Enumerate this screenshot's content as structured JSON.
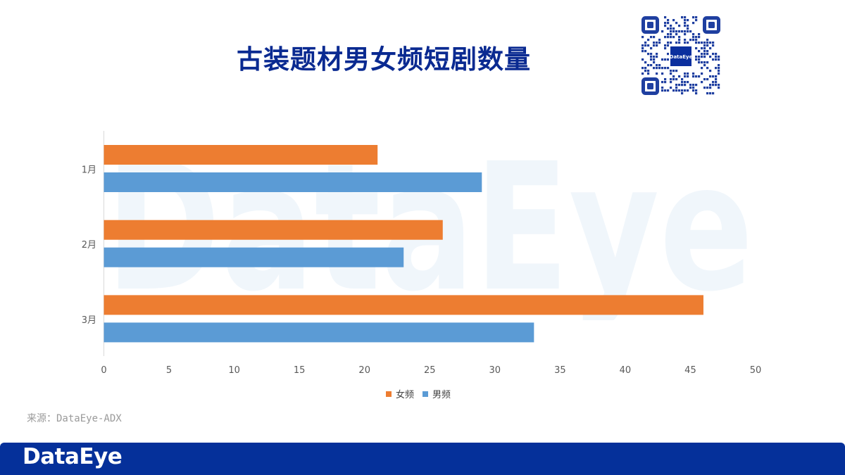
{
  "title": "古装题材男女频短剧数量",
  "source": "来源：DataEye-ADX",
  "brand": "DataEye",
  "qr_label": "DataEye",
  "colors": {
    "title": "#0a2a91",
    "female": "#ed7d31",
    "male": "#5b9bd5",
    "footer": "#05309a"
  },
  "chart_data": {
    "type": "bar",
    "orientation": "horizontal",
    "categories": [
      "1月",
      "2月",
      "3月"
    ],
    "series": [
      {
        "name": "女频",
        "values": [
          21,
          26,
          46
        ],
        "color": "#ed7d31"
      },
      {
        "name": "男频",
        "values": [
          29,
          23,
          33
        ],
        "color": "#5b9bd5"
      }
    ],
    "xlim": [
      0,
      50
    ],
    "xticks": [
      "0",
      "5",
      "10",
      "15",
      "20",
      "25",
      "30",
      "35",
      "40",
      "45",
      "50"
    ],
    "legend": "bottom",
    "grid": false
  }
}
